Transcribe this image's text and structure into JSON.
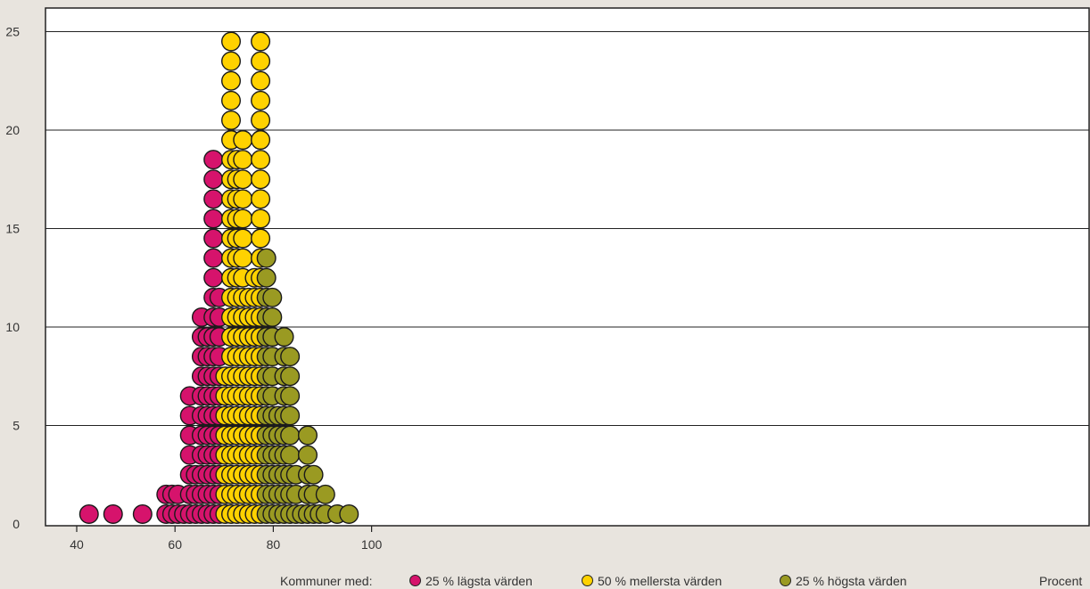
{
  "chart_data": {
    "type": "scatter",
    "subtype": "dot-plot",
    "xlim": [
      38,
      102
    ],
    "ylim": [
      0,
      26
    ],
    "x_ticks": [
      40,
      60,
      80,
      100
    ],
    "y_ticks": [
      0,
      5,
      10,
      15,
      20,
      25
    ],
    "x_unit_label": "Procent",
    "grid": "horizontal",
    "legend_position": "bottom",
    "legend_prefix": "Kommuner med:",
    "series": [
      {
        "name": "25 % lägsta värden",
        "color": "#d6136c",
        "columns": [
          {
            "x": 42.5,
            "count": 1
          },
          {
            "x": 47.4,
            "count": 1
          },
          {
            "x": 53.4,
            "count": 1
          },
          {
            "x": 58.2,
            "count": 2
          },
          {
            "x": 59.4,
            "count": 2
          },
          {
            "x": 60.6,
            "count": 2
          },
          {
            "x": 61.8,
            "count": 1
          },
          {
            "x": 63.0,
            "count": 7
          },
          {
            "x": 64.2,
            "count": 3
          },
          {
            "x": 65.4,
            "count": 11
          },
          {
            "x": 66.6,
            "count": 10
          },
          {
            "x": 67.8,
            "count": 19
          },
          {
            "x": 69.0,
            "count": 12
          }
        ]
      },
      {
        "name": "50 % mellersta värden",
        "color": "#ffd200",
        "columns": [
          {
            "x": 70.2,
            "count": 8
          },
          {
            "x": 71.4,
            "count": 25
          },
          {
            "x": 72.6,
            "count": 19
          },
          {
            "x": 73.8,
            "count": 20
          },
          {
            "x": 75.0,
            "count": 12
          },
          {
            "x": 76.2,
            "count": 13
          },
          {
            "x": 77.4,
            "count": 25
          }
        ]
      },
      {
        "name": "25 % högsta värden",
        "color": "#9a9a22",
        "columns": [
          {
            "x": 78.6,
            "count": 14
          },
          {
            "x": 79.8,
            "count": 12
          },
          {
            "x": 81.0,
            "count": 6
          },
          {
            "x": 82.2,
            "count": 10
          },
          {
            "x": 83.4,
            "count": 9
          },
          {
            "x": 84.6,
            "count": 3
          },
          {
            "x": 85.8,
            "count": 1
          },
          {
            "x": 87.0,
            "count": 5
          },
          {
            "x": 88.2,
            "count": 3
          },
          {
            "x": 89.4,
            "count": 1
          },
          {
            "x": 90.6,
            "count": 2
          },
          {
            "x": 93.0,
            "count": 1
          },
          {
            "x": 95.4,
            "count": 1
          }
        ]
      }
    ]
  }
}
